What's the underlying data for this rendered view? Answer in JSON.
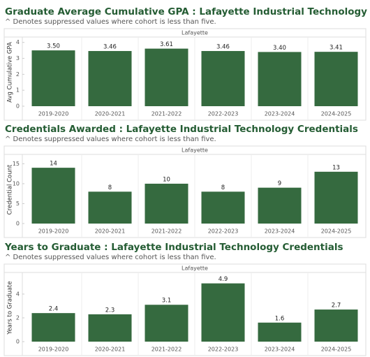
{
  "chart_data": [
    {
      "type": "bar",
      "title": "Graduate Average Cumulative GPA : Lafayette Industrial Technology Credentials",
      "subtitle": "^ Denotes suppressed values where cohort is less than five.",
      "header": "Lafayette",
      "y_label": "Avg Cumulative GPA",
      "categories": [
        "2019-2020",
        "2020-2021",
        "2021-2022",
        "2022-2023",
        "2023-2024",
        "2024-2025"
      ],
      "values": [
        3.5,
        3.46,
        3.61,
        3.46,
        3.4,
        3.41
      ],
      "value_labels": [
        "3.50",
        "3.46",
        "3.61",
        "3.46",
        "3.40",
        "3.41"
      ],
      "color": "#356a3f",
      "ylim": [
        0,
        4.25
      ],
      "yticks": [
        0,
        1,
        2,
        3,
        4
      ]
    },
    {
      "type": "bar",
      "title": "Credentials Awarded : Lafayette Industrial Technology Credentials",
      "subtitle": "^ Denotes suppressed values where cohort is less than five.",
      "header": "Lafayette",
      "y_label": "Credential Count",
      "categories": [
        "2019-2020",
        "2020-2021",
        "2021-2022",
        "2022-2023",
        "2023-2024",
        "2024-2025"
      ],
      "values": [
        14,
        8,
        10,
        8,
        9,
        13
      ],
      "color": "#356a3f",
      "ylim": [
        0,
        17
      ],
      "yticks": [
        0,
        5,
        10,
        15
      ]
    },
    {
      "type": "bar",
      "title": "Years to Graduate : Lafayette Industrial Technology Credentials",
      "subtitle": "^ Denotes suppressed values where cohort is less than five.",
      "header": "Lafayette",
      "y_label": "Years to Graduate",
      "categories": [
        "2019-2020",
        "2020-2021",
        "2021-2022",
        "2022-2023",
        "2023-2024",
        "2024-2025"
      ],
      "values": [
        2.4,
        2.3,
        3.1,
        4.9,
        1.6,
        2.7
      ],
      "color": "#356a3f",
      "ylim": [
        0,
        5.7
      ],
      "yticks": [
        0,
        2,
        4
      ]
    }
  ]
}
